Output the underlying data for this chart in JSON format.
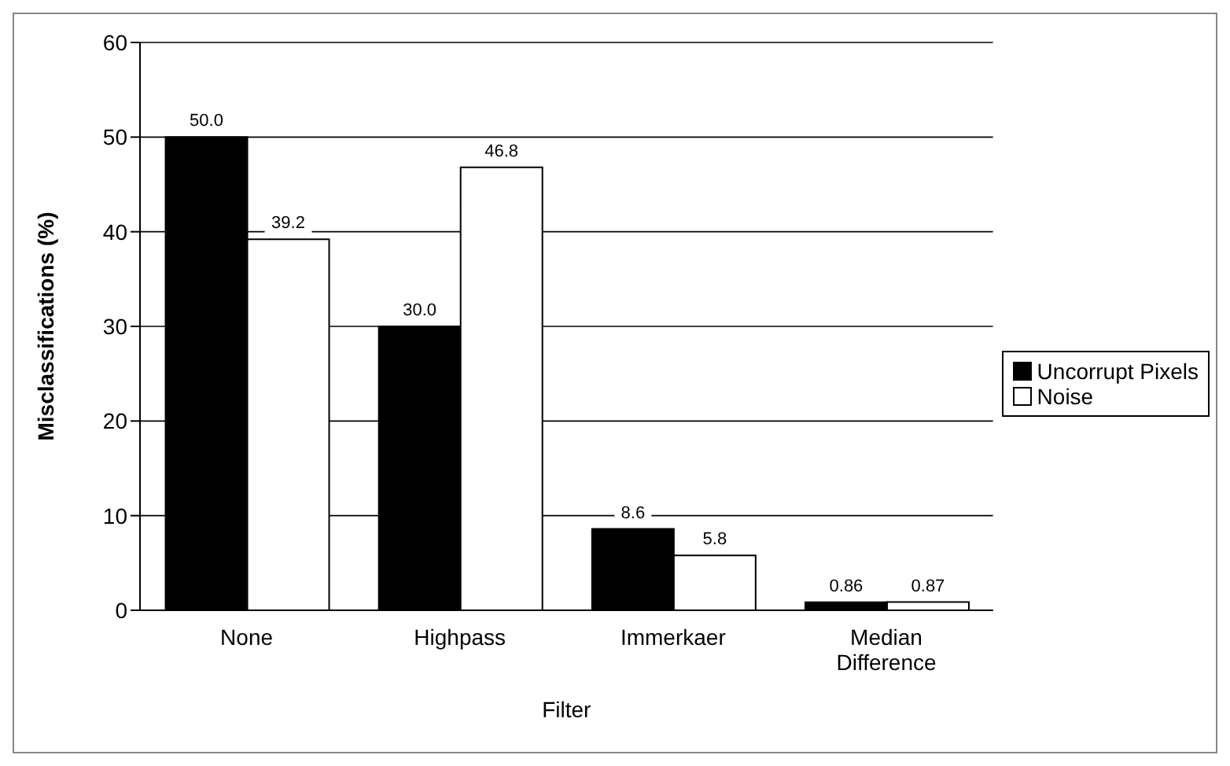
{
  "chart_data": {
    "type": "bar",
    "xlabel": "Filter",
    "ylabel": "Misclassifications (%)",
    "categories": [
      "None",
      "Highpass",
      "Immerkaer",
      "Median Difference"
    ],
    "series": [
      {
        "name": "Uncorrupt Pixels",
        "color": "#000000",
        "values": [
          50.0,
          30.0,
          8.6,
          0.86
        ],
        "value_labels": [
          "50.0",
          "30.0",
          "8.6",
          "0.86"
        ]
      },
      {
        "name": "Noise",
        "color": "#ffffff",
        "values": [
          39.2,
          46.8,
          5.8,
          0.87
        ],
        "value_labels": [
          "39.2",
          "46.8",
          "5.8",
          "0.87"
        ]
      }
    ],
    "ylim": [
      0,
      60
    ],
    "yticks": [
      0,
      10,
      20,
      30,
      40,
      50,
      60
    ],
    "grid": "y",
    "legend": "right"
  }
}
